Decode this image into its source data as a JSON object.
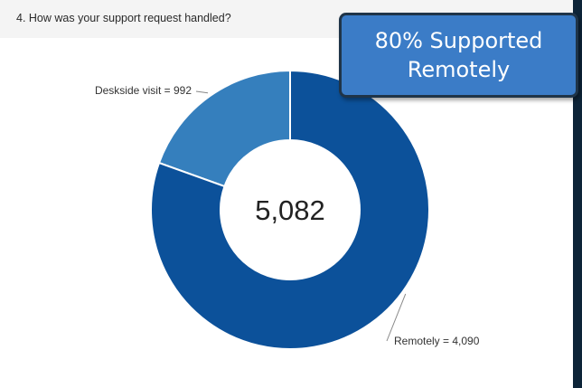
{
  "question": "4. How was your support request handled?",
  "callout": {
    "line1": "80% Supported",
    "line2": "Remotely"
  },
  "colors": {
    "remotely": "#0c519a",
    "deskside": "#357fbd",
    "callout_bg": "#3b7cc7",
    "callout_border": "#1f3448",
    "frame": "#0d2438"
  },
  "chart_data": {
    "type": "pie",
    "donut": true,
    "center_label": "5,082",
    "slices": [
      {
        "name": "Deskside visit",
        "value": 992,
        "label": "Deskside visit = 992"
      },
      {
        "name": "Remotely",
        "value": 4090,
        "label": "Remotely = 4,090"
      }
    ]
  }
}
